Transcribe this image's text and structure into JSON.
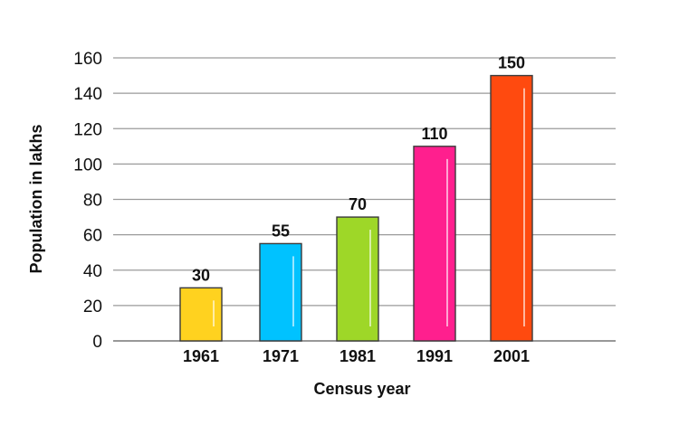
{
  "chart_data": {
    "type": "bar",
    "title": "",
    "xlabel": "Census year",
    "ylabel": "Population in lakhs",
    "categories": [
      "1961",
      "1971",
      "1981",
      "1991",
      "2001"
    ],
    "values": [
      30,
      55,
      70,
      110,
      150
    ],
    "data_labels": [
      "30",
      "55",
      "70",
      "110",
      "150"
    ],
    "ylim": [
      0,
      160
    ],
    "yticks": [
      0,
      20,
      40,
      60,
      80,
      100,
      120,
      140,
      160
    ],
    "ytick_labels": [
      "0",
      "20",
      "40",
      "60",
      "80",
      "100",
      "120",
      "140",
      "160"
    ],
    "bar_colors": [
      "#FFD21F",
      "#00C2FF",
      "#9ED728",
      "#FF1F8E",
      "#FF4A0F"
    ],
    "grid": "horizontal",
    "legend": "none"
  }
}
